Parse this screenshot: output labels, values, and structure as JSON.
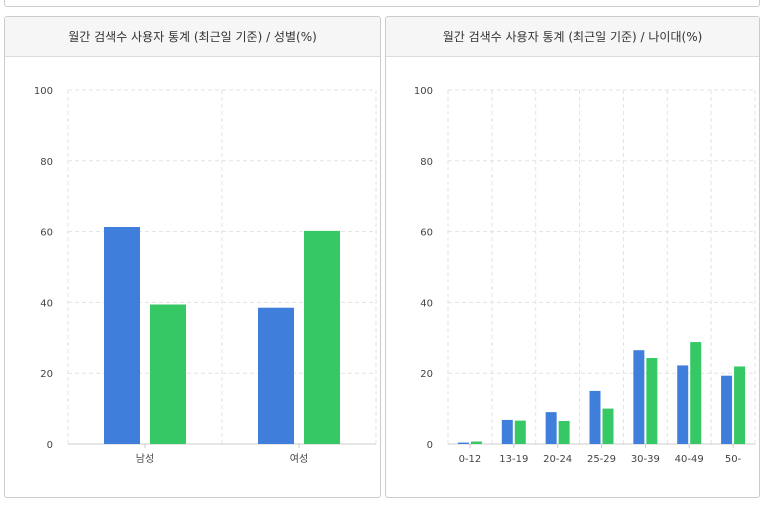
{
  "colors": {
    "male": "#3f7fdb",
    "female": "#37c866",
    "grid": "#e3e3e3",
    "axis": "#cccccc"
  },
  "chart_data": [
    {
      "type": "bar",
      "title": "월간 검색수 사용자 통계 (최근일 기준) / 성별(%)",
      "categories": [
        "남성",
        "여성"
      ],
      "series": [
        {
          "values": [
            61.3,
            38.5
          ]
        },
        {
          "values": [
            39.4,
            60.2
          ]
        }
      ],
      "ylim": [
        0,
        100
      ],
      "yticks": [
        "0",
        "20",
        "40",
        "60",
        "80",
        "100"
      ],
      "grid": true
    },
    {
      "type": "bar",
      "title": "월간 검색수 사용자 통계 (최근일 기준) / 나이대(%)",
      "categories": [
        "0-12",
        "13-19",
        "20-24",
        "25-29",
        "30-39",
        "40-49",
        "50-"
      ],
      "series": [
        {
          "values": [
            0.4,
            6.8,
            9.0,
            15.0,
            26.5,
            22.2,
            19.3
          ]
        },
        {
          "values": [
            0.7,
            6.6,
            6.5,
            10.0,
            24.3,
            28.8,
            21.9
          ]
        }
      ],
      "ylim": [
        0,
        100
      ],
      "yticks": [
        "0",
        "20",
        "40",
        "60",
        "80",
        "100"
      ],
      "grid": true
    }
  ]
}
